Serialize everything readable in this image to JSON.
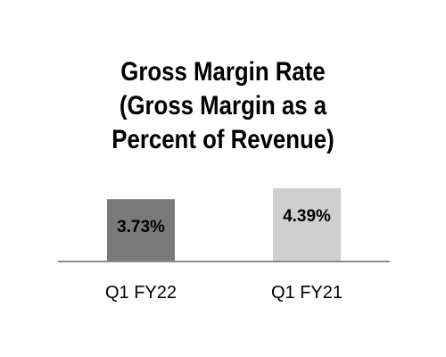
{
  "chart_data": {
    "type": "bar",
    "title_lines": [
      "Gross Margin Rate",
      "(Gross Margin as a",
      "Percent of Revenue)"
    ],
    "categories": [
      "Q1 FY22",
      "Q1 FY21"
    ],
    "values": [
      3.73,
      4.39
    ],
    "data_labels": [
      "3.73%",
      "4.39%"
    ],
    "colors": [
      "#7a7a7a",
      "#cfcfcf"
    ],
    "baseline_color": "#8c8c8c",
    "ylim": [
      0,
      7.0
    ],
    "grid": false,
    "xlabel": "",
    "ylabel": ""
  }
}
